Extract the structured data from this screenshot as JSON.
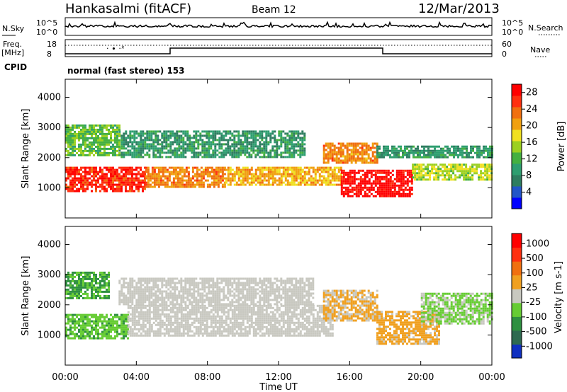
{
  "header": {
    "station": "Hankasalmi (fitACF)",
    "beam": "Beam 12",
    "date": "12/Mar/2013"
  },
  "noise_panel": {
    "left_label": "N.Sky",
    "right_label": "N.Search",
    "left_ticks": [
      "10^5",
      "10^0"
    ],
    "right_ticks": [
      "10^5",
      "10^0"
    ]
  },
  "freq_panel": {
    "left_label_1": "Freq.",
    "left_label_2": "[MHz]",
    "left_ticks": [
      "18",
      "8"
    ],
    "right_label": "Nave",
    "right_ticks": [
      "60",
      "0"
    ],
    "cpid_label": "CPID",
    "cpid_text": "normal (fast stereo) 153"
  },
  "time_axis": {
    "label": "Time UT",
    "ticks": [
      "00:00",
      "04:00",
      "08:00",
      "12:00",
      "16:00",
      "20:00",
      "00:00"
    ],
    "range_hours": [
      0,
      24
    ]
  },
  "chart_data": [
    {
      "type": "heatmap",
      "title": "",
      "xlabel": "Time UT",
      "ylabel": "Slant Range [km]",
      "xlim": [
        0,
        24
      ],
      "ylim": [
        0,
        4600
      ],
      "yticks": [
        "1000",
        "2000",
        "3000",
        "4000"
      ],
      "colorbar": {
        "label": "Power [dB]",
        "ticks": [
          "4",
          "8",
          "12",
          "16",
          "20",
          "24",
          "28"
        ],
        "range": [
          0,
          30
        ],
        "colors": [
          "#0000ff",
          "#2255c8",
          "#2e7d60",
          "#2e9e70",
          "#44b040",
          "#9cd020",
          "#f0e020",
          "#f0a010",
          "#f07010",
          "#ff3010",
          "#ff0000"
        ]
      },
      "echo_regions": [
        {
          "t0": 0.0,
          "t1": 4.5,
          "r0": 900,
          "r1": 1700,
          "level": 27
        },
        {
          "t0": 4.5,
          "t1": 9.0,
          "r0": 1000,
          "r1": 1700,
          "level": 22
        },
        {
          "t0": 9.0,
          "t1": 15.5,
          "r0": 1100,
          "r1": 1700,
          "level": 20
        },
        {
          "t0": 15.5,
          "t1": 19.5,
          "r0": 700,
          "r1": 1600,
          "level": 29
        },
        {
          "t0": 19.5,
          "t1": 24.0,
          "r0": 1300,
          "r1": 1800,
          "level": 16
        },
        {
          "t0": 14.5,
          "t1": 17.5,
          "r0": 1800,
          "r1": 2500,
          "level": 22
        },
        {
          "t0": 17.5,
          "t1": 24.0,
          "r0": 2000,
          "r1": 2400,
          "level": 9
        },
        {
          "t0": 3.0,
          "t1": 13.5,
          "r0": 2000,
          "r1": 2900,
          "level": 9
        },
        {
          "t0": 0.0,
          "t1": 3.0,
          "r0": 2100,
          "r1": 3100,
          "level": 13
        }
      ]
    },
    {
      "type": "heatmap",
      "title": "",
      "xlabel": "Time UT",
      "ylabel": "Slant Range [km]",
      "xlim": [
        0,
        24
      ],
      "ylim": [
        0,
        4600
      ],
      "yticks": [
        "1000",
        "2000",
        "3000",
        "4000"
      ],
      "colorbar": {
        "label": "Velocity [m s-1]",
        "ticks": [
          "1000",
          "500",
          "100",
          "25",
          "-25",
          "-100",
          "-500",
          "-1000"
        ],
        "range": [
          -1100,
          1100
        ],
        "colors": [
          "#1030c0",
          "#2e6a50",
          "#2e9040",
          "#66cc33",
          "#c8c8c0",
          "#f0a020",
          "#f07010",
          "#ff3010",
          "#ff0000"
        ]
      },
      "echo_regions": [
        {
          "t0": 0.0,
          "t1": 3.5,
          "r0": 900,
          "r1": 1700,
          "velocity": -300
        },
        {
          "t0": 3.5,
          "t1": 15.0,
          "r0": 1000,
          "r1": 2000,
          "velocity": 0
        },
        {
          "t0": 3.0,
          "t1": 14.0,
          "r0": 2000,
          "r1": 2900,
          "velocity": 0
        },
        {
          "t0": 14.5,
          "t1": 17.5,
          "r0": 1500,
          "r1": 2500,
          "velocity": 150
        },
        {
          "t0": 17.5,
          "t1": 21.0,
          "r0": 700,
          "r1": 1800,
          "velocity": 200
        },
        {
          "t0": 20.0,
          "t1": 24.0,
          "r0": 1400,
          "r1": 2400,
          "velocity": -150
        },
        {
          "t0": 0.0,
          "t1": 2.5,
          "r0": 2200,
          "r1": 3100,
          "velocity": -400
        }
      ]
    }
  ]
}
